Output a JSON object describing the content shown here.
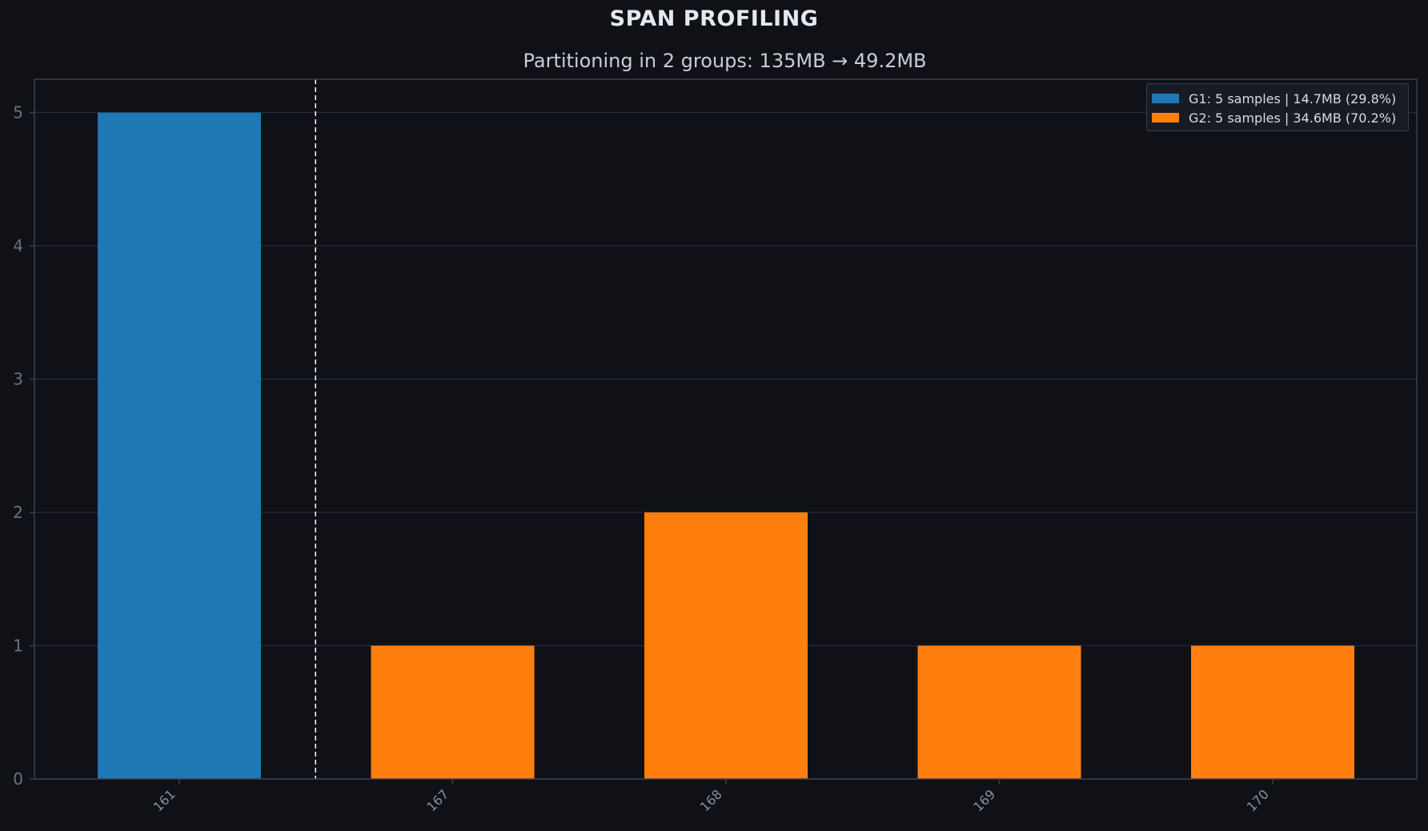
{
  "title": "SPAN PROFILING",
  "subtitle": "Partitioning in 2 groups: 135MB → 49.2MB",
  "colors": {
    "background": "#0f1117",
    "axis": "#3a3f4d",
    "grid": "#232635",
    "tick_text": "#6b7080",
    "xtick_text": "#8a8fa0",
    "separator": "#ffffff",
    "group1": "#1f77b4",
    "group2": "#ff7f0e"
  },
  "legend": [
    {
      "label": "G1: 5 samples | 14.7MB (29.8%)",
      "color": "#1f77b4"
    },
    {
      "label": "G2: 5 samples | 34.6MB (70.2%)",
      "color": "#ff7f0e"
    }
  ],
  "chart_data": {
    "type": "bar",
    "title": "SPAN PROFILING",
    "subtitle": "Partitioning in 2 groups: 135MB → 49.2MB",
    "categories": [
      "161",
      "167",
      "168",
      "169",
      "170"
    ],
    "values": [
      5,
      1,
      2,
      1,
      1
    ],
    "groups": [
      "G1",
      "G2",
      "G2",
      "G2",
      "G2"
    ],
    "ylim": [
      0,
      5.25
    ],
    "yticks": [
      0,
      1,
      2,
      3,
      4,
      5
    ],
    "separator_after_category_index": 0,
    "grid": true,
    "legend_position": "top-right",
    "xlabel": "",
    "ylabel": ""
  }
}
